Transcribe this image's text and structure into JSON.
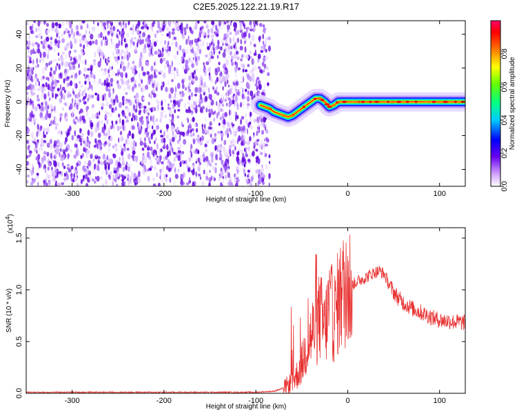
{
  "figure": {
    "title": "C2E5.2025.122.21.19.R17"
  },
  "chart_data": [
    {
      "type": "heatmap",
      "xlabel": "Height of straight line (km)",
      "ylabel": "Frequency (Hz)",
      "xlim": [
        -350,
        128
      ],
      "ylim": [
        -50,
        48
      ],
      "x_ticks": [
        -300,
        -200,
        -100,
        0,
        100
      ],
      "y_ticks": [
        -40,
        -20,
        0,
        20,
        40
      ],
      "noise_region_x": [
        -350,
        -88
      ],
      "signal_ridge": {
        "x": [
          -95,
          -90,
          -85,
          -80,
          -75,
          -70,
          -65,
          -60,
          -55,
          -50,
          -45,
          -40,
          -35,
          -30,
          -25,
          -20,
          -15,
          -10,
          -5,
          0,
          20,
          50,
          80,
          100,
          128
        ],
        "y": [
          -2,
          -3,
          -4,
          -6,
          -7,
          -8,
          -9,
          -8,
          -6,
          -4,
          -2,
          0,
          2,
          2,
          0,
          -3,
          -2,
          0,
          0,
          0,
          0,
          0,
          0,
          0,
          0
        ]
      },
      "colorbar": {
        "label": "Normalized spectral amplitude",
        "range": [
          0,
          1
        ],
        "ticks": [
          "0.0",
          "0.2",
          "0.4",
          "0.6",
          "0.8"
        ]
      }
    },
    {
      "type": "line",
      "xlabel": "Height of straight line (km)",
      "ylabel": "SNR (10 * v/v)",
      "y_multiplier": "(x10",
      "y_multiplier_exponent": "4",
      "y_multiplier_close": ")",
      "xlim": [
        -350,
        128
      ],
      "ylim": [
        0,
        1.6
      ],
      "x_ticks": [
        -300,
        -200,
        -100,
        0,
        100
      ],
      "y_ticks": [
        "0.0",
        "0.5",
        "1.0",
        "1.5"
      ],
      "line_color": "#e83030",
      "series": [
        {
          "x": [
            -350,
            -300,
            -250,
            -200,
            -150,
            -100,
            -80,
            -70,
            -65,
            -60,
            -55,
            -50,
            -45,
            -40,
            -35,
            -30,
            -25,
            -20,
            -15,
            -10,
            -5,
            0,
            5,
            10,
            15,
            20,
            25,
            30,
            35,
            40,
            45,
            50,
            55,
            60,
            65,
            70,
            75,
            80,
            85,
            90,
            95,
            100,
            105,
            110,
            115,
            120,
            128
          ],
          "values": [
            0.01,
            0.01,
            0.01,
            0.01,
            0.01,
            0.01,
            0.02,
            0.05,
            0.08,
            0.12,
            0.18,
            0.28,
            0.45,
            0.55,
            0.65,
            0.75,
            0.62,
            0.85,
            0.72,
            0.9,
            0.98,
            1.02,
            1.05,
            1.08,
            1.1,
            1.12,
            1.15,
            1.17,
            1.18,
            1.15,
            1.05,
            0.98,
            0.92,
            0.88,
            0.85,
            0.82,
            0.8,
            0.78,
            0.76,
            0.74,
            0.72,
            0.71,
            0.7,
            0.7,
            0.69,
            0.69,
            0.68
          ]
        }
      ]
    }
  ]
}
